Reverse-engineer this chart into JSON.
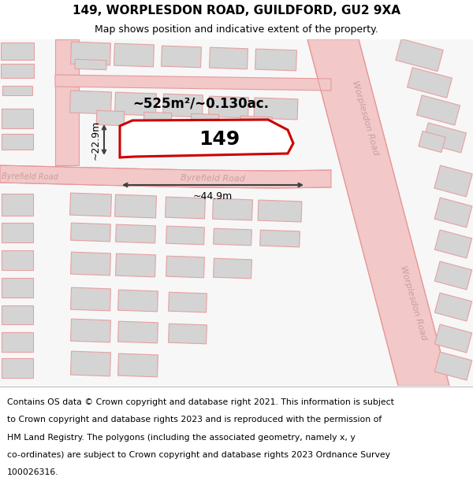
{
  "title": "149, WORPLESDON ROAD, GUILDFORD, GU2 9XA",
  "subtitle": "Map shows position and indicative extent of the property.",
  "footer_line1": "Contains OS data © Crown copyright and database right 2021. This information is subject",
  "footer_line2": "to Crown copyright and database rights 2023 and is reproduced with the permission of",
  "footer_line3": "HM Land Registry. The polygons (including the associated geometry, namely x, y",
  "footer_line4": "co-ordinates) are subject to Crown copyright and database rights 2023 Ordnance Survey",
  "footer_line5": "100026316.",
  "map_bg": "#f7f7f7",
  "road_fill": "#f2c8c8",
  "road_edge": "#e89898",
  "building_fill": "#d4d4d4",
  "building_edge": "#e8a0a0",
  "prop_fill": "#ffffff",
  "prop_edge": "#cc0000",
  "area_label": "~525m²/~0.130ac.",
  "property_label": "149",
  "dim_width": "~44.9m",
  "dim_height": "~22.9m",
  "road_label_worplesdon": "Worplesdon Road",
  "road_label_byrefield_main": "Byrefield Road",
  "road_label_byrefield_left": "Byrefield Road",
  "dim_color": "#404040",
  "road_text_color": "#c8a0a0",
  "title_fontsize": 11,
  "subtitle_fontsize": 9,
  "footer_fontsize": 7.8
}
